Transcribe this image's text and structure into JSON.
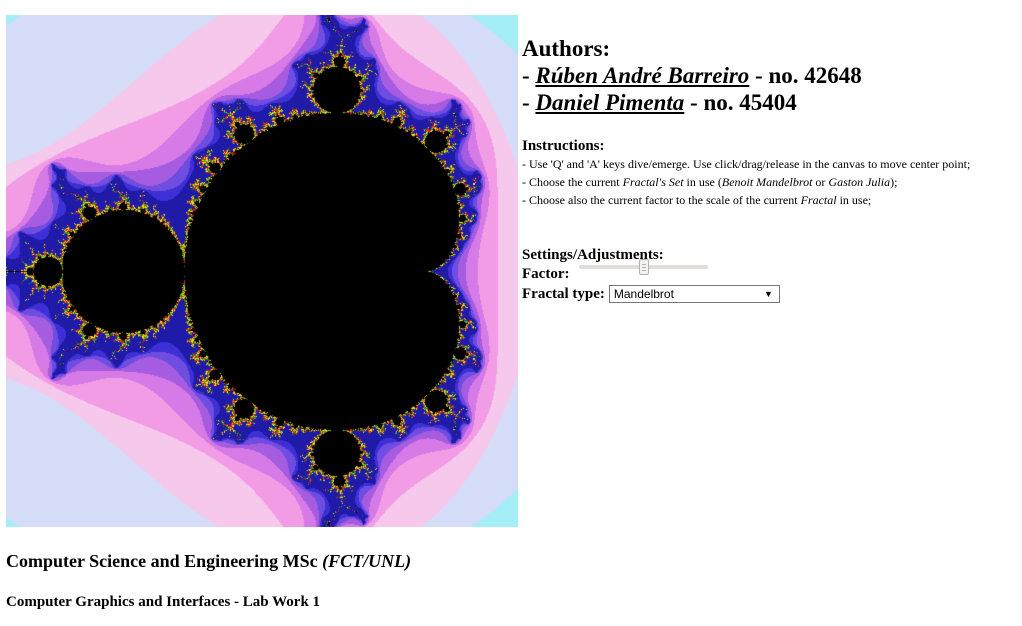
{
  "canvas": {
    "fractal": "Mandelbrot",
    "palette": [
      "#44f2f2",
      "#a4eef7",
      "#d4dcf8",
      "#f6c8ec",
      "#f29ce6",
      "#d67ae8",
      "#a65ce0",
      "#6e4de0",
      "#3e2fd6",
      "#1f1aa8",
      "#000000"
    ]
  },
  "authors": {
    "heading": "Authors:",
    "list": [
      {
        "prefix": " - ",
        "name": "Rúben André Barreiro",
        "suffix": " - no. 42648"
      },
      {
        "prefix": " - ",
        "name": "Daniel Pimenta",
        "suffix": " - no. 45404"
      }
    ]
  },
  "instructions": {
    "heading": "Instructions:",
    "line1": "- Use 'Q' and 'A' keys dive/emerge. Use click/drag/release in the canvas to move center point;",
    "line2_pre": "- Choose the current ",
    "line2_em1": "Fractal's Set",
    "line2_mid": " in use (",
    "line2_em2": "Benoit Mandelbrot",
    "line2_mid2": " or ",
    "line2_em3": "Gaston Julia",
    "line2_post": ");",
    "line3_pre": "- Choose also the current factor to the scale of the current ",
    "line3_em": "Fractal",
    "line3_post": " in use;"
  },
  "settings": {
    "heading": "Settings/Adjustments:",
    "factor_label": "Factor:",
    "factor_value": 0.5,
    "type_label": "Fractal type:",
    "type_selected": "Mandelbrot"
  },
  "footer": {
    "line1_main": "Computer Science and Engineering MSc ",
    "line1_em": "(FCT/UNL)",
    "line2": "Computer Graphics and Interfaces - Lab Work 1"
  }
}
